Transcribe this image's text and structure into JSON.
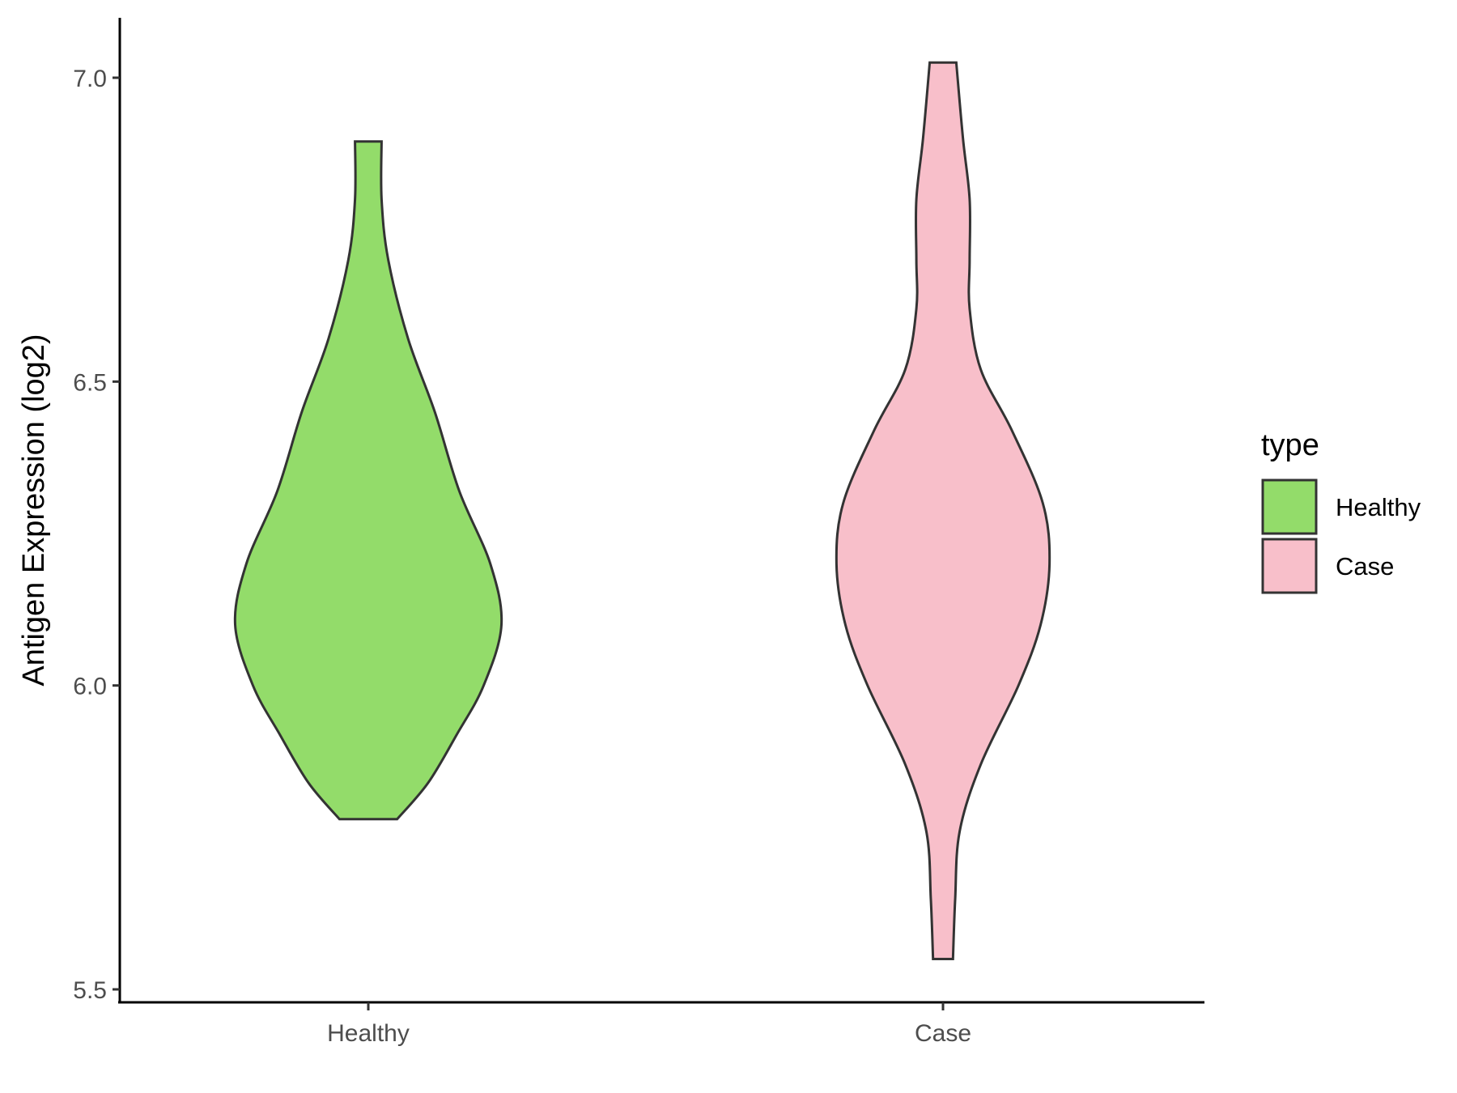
{
  "chart_data": {
    "type": "violin",
    "title": "",
    "xlabel": "",
    "ylabel": "Antigen Expression (log2)",
    "categories": [
      "Healthy",
      "Case"
    ],
    "ylim": [
      5.45,
      7.1
    ],
    "y_ticks": [
      "5.5",
      "6.0",
      "6.5",
      "7.0"
    ],
    "y_tick_values": [
      5.5,
      6.0,
      6.5,
      7.0
    ],
    "grid": false,
    "legend": {
      "title": "type",
      "placement": "right",
      "entries": [
        "Healthy",
        "Case"
      ]
    },
    "series": [
      {
        "name": "Healthy",
        "color": "#93dc6a",
        "min": 5.78,
        "max": 6.895,
        "density_profile": [
          {
            "y": 5.78,
            "half_width": 0.13
          },
          {
            "y": 5.84,
            "half_width": 0.27
          },
          {
            "y": 5.92,
            "half_width": 0.4
          },
          {
            "y": 6.0,
            "half_width": 0.52
          },
          {
            "y": 6.1,
            "half_width": 0.6
          },
          {
            "y": 6.2,
            "half_width": 0.55
          },
          {
            "y": 6.32,
            "half_width": 0.41
          },
          {
            "y": 6.45,
            "half_width": 0.3
          },
          {
            "y": 6.57,
            "half_width": 0.18
          },
          {
            "y": 6.7,
            "half_width": 0.09
          },
          {
            "y": 6.8,
            "half_width": 0.06
          },
          {
            "y": 6.895,
            "half_width": 0.06
          }
        ]
      },
      {
        "name": "Case",
        "color": "#f8bfca",
        "min": 5.55,
        "max": 7.025,
        "density_profile": [
          {
            "y": 5.55,
            "half_width": 0.045
          },
          {
            "y": 5.65,
            "half_width": 0.055
          },
          {
            "y": 5.76,
            "half_width": 0.075
          },
          {
            "y": 5.87,
            "half_width": 0.17
          },
          {
            "y": 6.0,
            "half_width": 0.34
          },
          {
            "y": 6.1,
            "half_width": 0.44
          },
          {
            "y": 6.2,
            "half_width": 0.48
          },
          {
            "y": 6.3,
            "half_width": 0.45
          },
          {
            "y": 6.42,
            "half_width": 0.31
          },
          {
            "y": 6.52,
            "half_width": 0.17
          },
          {
            "y": 6.62,
            "half_width": 0.12
          },
          {
            "y": 6.7,
            "half_width": 0.12
          },
          {
            "y": 6.8,
            "half_width": 0.12
          },
          {
            "y": 6.9,
            "half_width": 0.09
          },
          {
            "y": 7.025,
            "half_width": 0.06
          }
        ]
      }
    ]
  }
}
